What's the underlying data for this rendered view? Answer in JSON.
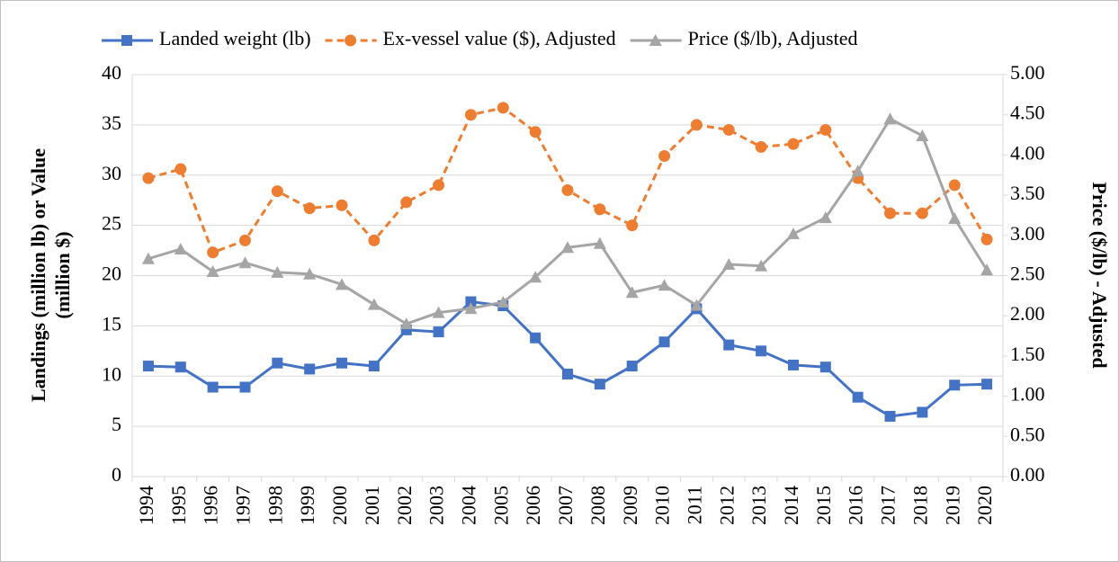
{
  "chart_data": {
    "type": "line",
    "categories": [
      "1994",
      "1995",
      "1996",
      "1997",
      "1998",
      "1999",
      "2000",
      "2001",
      "2002",
      "2003",
      "2004",
      "2005",
      "2006",
      "2007",
      "2008",
      "2009",
      "2010",
      "2011",
      "2012",
      "2013",
      "2014",
      "2015",
      "2016",
      "2017",
      "2018",
      "2019",
      "2020"
    ],
    "ylabel": [
      "Landings (million lb) or Value",
      "(million $)"
    ],
    "y2label": "Price ($/lb) - Adjusted",
    "ylim": [
      0,
      40
    ],
    "yticks": [
      0,
      5,
      10,
      15,
      20,
      25,
      30,
      35,
      40
    ],
    "y2lim": [
      0,
      5
    ],
    "y2ticks": [
      {
        "value": 0,
        "label": "0.00"
      },
      {
        "value": 0.5,
        "label": "0.50"
      },
      {
        "value": 1,
        "label": "1.00"
      },
      {
        "value": 1.5,
        "label": "1.50"
      },
      {
        "value": 2,
        "label": "2.00"
      },
      {
        "value": 2.5,
        "label": "2.50"
      },
      {
        "value": 3,
        "label": "3.00"
      },
      {
        "value": 3.5,
        "label": "3.50"
      },
      {
        "value": 4,
        "label": "4.00"
      },
      {
        "value": 4.5,
        "label": "4.50"
      },
      {
        "value": 5,
        "label": "5.00"
      }
    ],
    "grid": true,
    "legend": "top",
    "series": [
      {
        "name": "Landed weight (lb)",
        "color": "#4472c4",
        "marker": "square",
        "dash": false,
        "values": [
          11.0,
          10.9,
          8.9,
          8.9,
          11.3,
          10.7,
          11.3,
          11.0,
          14.6,
          14.4,
          17.4,
          17.0,
          13.8,
          10.2,
          9.2,
          11.0,
          13.4,
          16.7,
          13.1,
          12.5,
          11.1,
          10.9,
          7.9,
          6.0,
          6.4,
          9.1,
          9.2
        ]
      },
      {
        "name": "Ex-vessel value ($), Adjusted",
        "color": "#ed7d31",
        "marker": "circle",
        "dash": true,
        "values": [
          29.7,
          30.6,
          22.3,
          23.5,
          28.4,
          26.7,
          27.0,
          23.5,
          27.3,
          29.0,
          36.0,
          36.7,
          34.3,
          28.5,
          26.6,
          25.0,
          31.9,
          35.0,
          34.5,
          32.8,
          33.1,
          34.5,
          29.7,
          26.2,
          26.2,
          29.0,
          23.6
        ]
      },
      {
        "name": "Price ($/lb), Adjusted",
        "color": "#a5a5a5",
        "marker": "triangle",
        "dash": false,
        "axis": "y2",
        "values": [
          2.71,
          2.83,
          2.55,
          2.66,
          2.54,
          2.52,
          2.39,
          2.14,
          1.9,
          2.04,
          2.09,
          2.17,
          2.48,
          2.85,
          2.9,
          2.29,
          2.38,
          2.13,
          2.64,
          2.62,
          3.02,
          3.22,
          3.8,
          4.45,
          4.24,
          3.21,
          2.57
        ]
      }
    ]
  }
}
